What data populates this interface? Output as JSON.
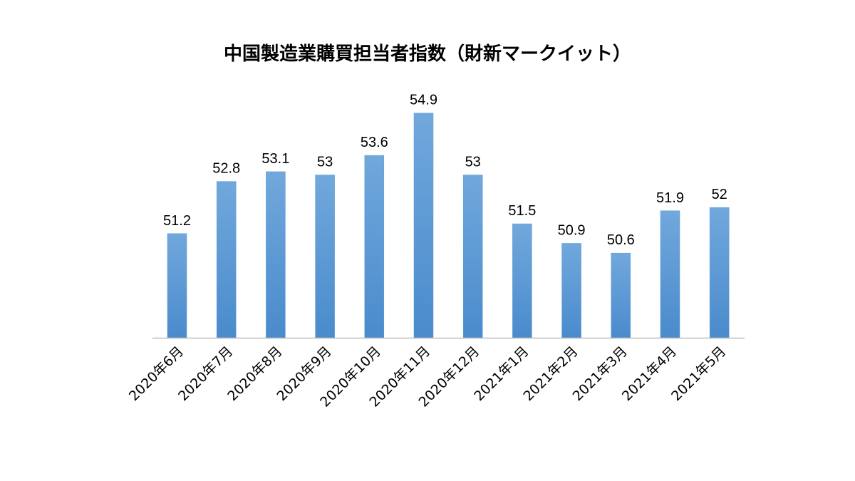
{
  "chart_data": {
    "type": "bar",
    "title": "中国製造業購買担当者指数（財新マークイット）",
    "categories": [
      "2020年6月",
      "2020年7月",
      "2020年8月",
      "2020年9月",
      "2020年10月",
      "2020年11月",
      "2020年12月",
      "2021年1月",
      "2021年2月",
      "2021年3月",
      "2021年4月",
      "2021年5月"
    ],
    "values": [
      51.2,
      52.8,
      53.1,
      53,
      53.6,
      54.9,
      53,
      51.5,
      50.9,
      50.6,
      51.9,
      52
    ],
    "data_labels": [
      "51.2",
      "52.8",
      "53.1",
      "53",
      "53.6",
      "54.9",
      "53",
      "51.5",
      "50.9",
      "50.6",
      "51.9",
      "52"
    ],
    "xlabel": "",
    "ylabel": "",
    "ylim": [
      48,
      56
    ],
    "grid": false,
    "legend": "none",
    "bar_color": "#5b9bd5"
  }
}
